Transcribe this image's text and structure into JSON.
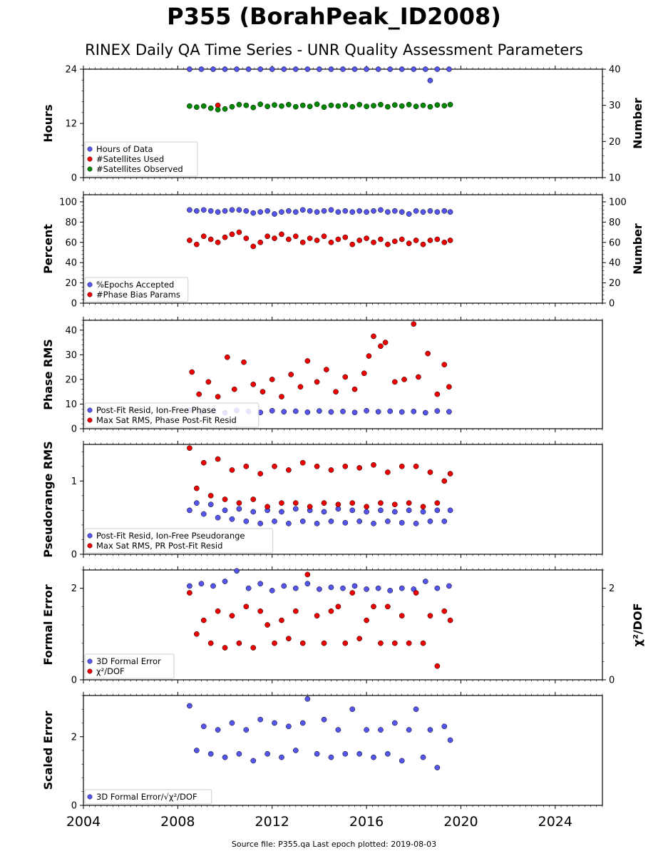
{
  "title": "P355 (BorahPeak_ID2008)",
  "subtitle": "RINEX Daily QA Time Series - UNR Quality Assessment Parameters",
  "source_note": "Source file: P355.qa Last epoch plotted: 2019-08-03",
  "colors": {
    "blue": "#5555ee",
    "red": "#ee0000",
    "green": "#008800",
    "edge": "#000000"
  },
  "chart_data": [
    {
      "type": "scatter",
      "ylabel": "Hours",
      "ylabel_right": "Number",
      "xlim": [
        2004,
        2026
      ],
      "xticks": [
        2004,
        2008,
        2012,
        2016,
        2020,
        2024
      ],
      "ylim": [
        0,
        24
      ],
      "yticks": [
        0,
        12,
        24
      ],
      "ylim_right": [
        10,
        40
      ],
      "yticks_right": [
        10,
        20,
        30,
        40
      ],
      "legend_position": "lower-left",
      "series": [
        {
          "name": "Hours of Data",
          "color": "blue",
          "axis": "left",
          "x": [
            2008.5,
            2009.0,
            2009.5,
            2010.0,
            2010.5,
            2011.0,
            2011.5,
            2012.0,
            2012.5,
            2013.0,
            2013.5,
            2014.0,
            2014.5,
            2015.0,
            2015.5,
            2016.0,
            2016.5,
            2017.0,
            2017.5,
            2018.0,
            2018.5,
            2018.7,
            2019.0,
            2019.5
          ],
          "y": [
            24,
            24,
            24,
            24,
            24,
            24,
            24,
            24,
            24,
            24,
            24,
            24,
            24,
            24,
            24,
            24,
            24,
            24,
            24,
            24,
            24,
            21.5,
            24,
            24
          ]
        },
        {
          "name": "#Satellites Used",
          "color": "red",
          "axis": "right",
          "x": [
            2009.7
          ],
          "y": [
            30
          ]
        },
        {
          "name": "#Satellites Observed",
          "color": "green",
          "axis": "right",
          "x": [
            2008.5,
            2008.8,
            2009.1,
            2009.4,
            2009.7,
            2010.0,
            2010.3,
            2010.6,
            2010.9,
            2011.2,
            2011.5,
            2011.8,
            2012.1,
            2012.4,
            2012.7,
            2013.0,
            2013.3,
            2013.6,
            2013.9,
            2014.2,
            2014.5,
            2014.8,
            2015.1,
            2015.4,
            2015.7,
            2016.0,
            2016.3,
            2016.6,
            2016.9,
            2017.2,
            2017.5,
            2017.8,
            2018.1,
            2018.4,
            2018.7,
            2019.0,
            2019.3,
            2019.55
          ],
          "y": [
            29.8,
            29.5,
            29.8,
            29.2,
            28.8,
            29.0,
            29.6,
            30.2,
            30.0,
            29.4,
            30.3,
            29.7,
            30.1,
            29.8,
            30.2,
            29.6,
            30.0,
            29.7,
            30.3,
            29.5,
            30.0,
            29.8,
            30.1,
            29.6,
            30.2,
            29.7,
            29.9,
            30.2,
            29.6,
            30.1,
            29.8,
            30.2,
            29.7,
            30.0,
            29.6,
            30.1,
            29.9,
            30.2
          ]
        }
      ]
    },
    {
      "type": "scatter",
      "ylabel": "Percent",
      "ylabel_right": "Number",
      "xlim": [
        2004,
        2026
      ],
      "xticks": [
        2004,
        2008,
        2012,
        2016,
        2020,
        2024
      ],
      "ylim": [
        0,
        107
      ],
      "yticks": [
        0,
        20,
        40,
        60,
        80,
        100
      ],
      "ylim_right": [
        0,
        107
      ],
      "yticks_right": [
        0,
        20,
        40,
        60,
        80,
        100
      ],
      "legend_position": "lower-left",
      "series": [
        {
          "name": "%Epochs Accepted",
          "color": "blue",
          "axis": "left",
          "x": [
            2008.5,
            2008.8,
            2009.1,
            2009.4,
            2009.7,
            2010.0,
            2010.3,
            2010.6,
            2010.9,
            2011.2,
            2011.5,
            2011.8,
            2012.1,
            2012.4,
            2012.7,
            2013.0,
            2013.3,
            2013.6,
            2013.9,
            2014.2,
            2014.5,
            2014.8,
            2015.1,
            2015.4,
            2015.7,
            2016.0,
            2016.3,
            2016.6,
            2016.9,
            2017.2,
            2017.5,
            2017.8,
            2018.1,
            2018.4,
            2018.7,
            2019.0,
            2019.3,
            2019.55
          ],
          "y": [
            92,
            91,
            92,
            91,
            90,
            91,
            92,
            92,
            91,
            89,
            90,
            91,
            88,
            90,
            91,
            90,
            92,
            91,
            90,
            91,
            92,
            90,
            91,
            90,
            91,
            90,
            91,
            92,
            90,
            91,
            90,
            88,
            91,
            90,
            91,
            90,
            91,
            90
          ]
        },
        {
          "name": "#Phase Bias Params",
          "color": "red",
          "axis": "right",
          "x": [
            2008.5,
            2008.8,
            2009.1,
            2009.4,
            2009.7,
            2010.0,
            2010.3,
            2010.6,
            2010.9,
            2011.2,
            2011.5,
            2011.8,
            2012.1,
            2012.4,
            2012.7,
            2013.0,
            2013.3,
            2013.6,
            2013.9,
            2014.2,
            2014.5,
            2014.8,
            2015.1,
            2015.4,
            2015.7,
            2016.0,
            2016.3,
            2016.6,
            2016.9,
            2017.2,
            2017.5,
            2017.8,
            2018.1,
            2018.4,
            2018.7,
            2019.0,
            2019.3,
            2019.55
          ],
          "y": [
            62,
            58,
            66,
            63,
            60,
            65,
            68,
            70,
            64,
            56,
            60,
            66,
            64,
            68,
            63,
            66,
            60,
            64,
            62,
            66,
            60,
            63,
            65,
            58,
            62,
            64,
            60,
            63,
            58,
            61,
            63,
            59,
            62,
            58,
            62,
            63,
            60,
            62
          ]
        }
      ]
    },
    {
      "type": "scatter",
      "ylabel": "Phase RMS",
      "xlim": [
        2004,
        2026
      ],
      "xticks": [
        2004,
        2008,
        2012,
        2016,
        2020,
        2024
      ],
      "ylim": [
        0,
        44
      ],
      "yticks": [
        0,
        10,
        20,
        30,
        40
      ],
      "legend_position": "lower-left",
      "series": [
        {
          "name": "Post-Fit Resid, Ion-Free Phase",
          "color": "blue",
          "axis": "left",
          "x": [
            2008.5,
            2009.0,
            2009.5,
            2010.0,
            2010.5,
            2011.0,
            2011.5,
            2012.0,
            2012.5,
            2013.0,
            2013.5,
            2014.0,
            2014.5,
            2015.0,
            2015.5,
            2016.0,
            2016.5,
            2017.0,
            2017.5,
            2018.0,
            2018.5,
            2019.0,
            2019.5
          ],
          "y": [
            7.5,
            6.8,
            7.2,
            6.5,
            7.4,
            7.0,
            6.6,
            7.3,
            6.9,
            7.1,
            6.7,
            7.2,
            6.8,
            7.0,
            6.6,
            7.3,
            6.9,
            7.1,
            6.8,
            7.0,
            6.5,
            7.2,
            6.9
          ]
        },
        {
          "name": "Max Sat RMS, Phase Post-Fit Resid",
          "color": "red",
          "axis": "left",
          "x": [
            2008.6,
            2008.9,
            2009.3,
            2009.7,
            2010.1,
            2010.4,
            2010.8,
            2011.2,
            2011.6,
            2012.0,
            2012.4,
            2012.8,
            2013.2,
            2013.5,
            2013.9,
            2014.3,
            2014.7,
            2015.1,
            2015.5,
            2015.9,
            2016.1,
            2016.3,
            2016.6,
            2016.8,
            2017.2,
            2017.6,
            2018.0,
            2018.2,
            2018.6,
            2019.0,
            2019.3,
            2019.5
          ],
          "y": [
            23,
            14,
            19,
            13,
            29,
            16,
            27,
            18,
            15,
            20,
            13,
            22,
            17,
            27.5,
            19,
            24,
            15,
            21,
            16,
            22.5,
            29.5,
            37.5,
            33.5,
            35,
            19,
            20,
            42.5,
            21,
            30.5,
            14,
            26,
            17
          ]
        }
      ]
    },
    {
      "type": "scatter",
      "ylabel": "Pseudorange RMS",
      "xlim": [
        2004,
        2026
      ],
      "xticks": [
        2004,
        2008,
        2012,
        2016,
        2020,
        2024
      ],
      "ylim": [
        0,
        1.5
      ],
      "yticks": [
        0,
        1
      ],
      "legend_position": "lower-left",
      "series": [
        {
          "name": "Post-Fit Resid, Ion-Free Pseudorange",
          "color": "blue",
          "axis": "left",
          "x": [
            2008.5,
            2008.8,
            2009.1,
            2009.4,
            2009.7,
            2010.0,
            2010.3,
            2010.6,
            2010.9,
            2011.2,
            2011.5,
            2011.8,
            2012.1,
            2012.4,
            2012.7,
            2013.0,
            2013.3,
            2013.6,
            2013.9,
            2014.2,
            2014.5,
            2014.8,
            2015.1,
            2015.4,
            2015.7,
            2016.0,
            2016.3,
            2016.6,
            2016.9,
            2017.2,
            2017.5,
            2017.8,
            2018.1,
            2018.4,
            2018.7,
            2019.0,
            2019.3,
            2019.55
          ],
          "y": [
            0.6,
            0.7,
            0.55,
            0.68,
            0.5,
            0.6,
            0.48,
            0.62,
            0.45,
            0.58,
            0.42,
            0.6,
            0.45,
            0.58,
            0.42,
            0.62,
            0.45,
            0.6,
            0.42,
            0.58,
            0.45,
            0.62,
            0.43,
            0.6,
            0.45,
            0.58,
            0.42,
            0.6,
            0.45,
            0.58,
            0.43,
            0.6,
            0.42,
            0.58,
            0.45,
            0.6,
            0.45,
            0.6
          ]
        },
        {
          "name": "Max Sat RMS, PR Post-Fit Resid",
          "color": "red",
          "axis": "left",
          "x": [
            2008.5,
            2008.8,
            2009.1,
            2009.4,
            2009.7,
            2010.0,
            2010.3,
            2010.6,
            2010.9,
            2011.2,
            2011.5,
            2011.8,
            2012.1,
            2012.4,
            2012.7,
            2013.0,
            2013.3,
            2013.6,
            2013.9,
            2014.2,
            2014.5,
            2014.8,
            2015.1,
            2015.4,
            2015.7,
            2016.0,
            2016.3,
            2016.6,
            2016.9,
            2017.2,
            2017.5,
            2017.8,
            2018.1,
            2018.4,
            2018.7,
            2019.0,
            2019.3,
            2019.55
          ],
          "y": [
            1.45,
            0.9,
            1.25,
            0.8,
            1.3,
            0.75,
            1.15,
            0.7,
            1.2,
            0.75,
            1.1,
            0.65,
            1.2,
            0.7,
            1.15,
            0.7,
            1.25,
            0.65,
            1.2,
            0.7,
            1.15,
            0.68,
            1.2,
            0.7,
            1.18,
            0.65,
            1.22,
            0.7,
            1.12,
            0.68,
            1.2,
            0.7,
            1.2,
            0.65,
            1.12,
            0.7,
            1.0,
            1.1
          ]
        }
      ]
    },
    {
      "type": "scatter",
      "ylabel": "Formal Error",
      "ylabel_right": "χ²/DOF",
      "xlim": [
        2004,
        2026
      ],
      "xticks": [
        2004,
        2008,
        2012,
        2016,
        2020,
        2024
      ],
      "ylim": [
        0,
        2.4
      ],
      "yticks": [
        0,
        2
      ],
      "ylim_right": [
        0,
        2.4
      ],
      "yticks_right": [
        0,
        2
      ],
      "legend_position": "lower-left",
      "series": [
        {
          "name": "3D Formal Error",
          "color": "blue",
          "axis": "left",
          "x": [
            2008.5,
            2009.0,
            2009.5,
            2010.0,
            2010.5,
            2011.0,
            2011.5,
            2012.0,
            2012.5,
            2013.0,
            2013.5,
            2014.0,
            2014.5,
            2015.0,
            2015.5,
            2016.0,
            2016.5,
            2017.0,
            2017.5,
            2018.0,
            2018.5,
            2019.0,
            2019.5
          ],
          "y": [
            2.05,
            2.1,
            2.05,
            2.15,
            2.38,
            2.0,
            2.1,
            1.95,
            2.05,
            2.0,
            2.1,
            1.98,
            2.02,
            2.0,
            2.05,
            1.98,
            2.0,
            1.95,
            2.0,
            1.98,
            2.15,
            2.0,
            2.05
          ]
        },
        {
          "name": "χ²/DOF",
          "color": "red",
          "axis": "right",
          "x": [
            2008.5,
            2008.8,
            2009.1,
            2009.4,
            2009.7,
            2010.0,
            2010.3,
            2010.6,
            2010.9,
            2011.2,
            2011.5,
            2011.8,
            2012.1,
            2012.4,
            2012.7,
            2013.0,
            2013.3,
            2013.5,
            2013.9,
            2014.2,
            2014.5,
            2014.8,
            2015.1,
            2015.4,
            2015.7,
            2016.0,
            2016.3,
            2016.6,
            2016.9,
            2017.2,
            2017.5,
            2017.8,
            2018.1,
            2018.4,
            2018.7,
            2019.0,
            2019.3,
            2019.55
          ],
          "y": [
            1.9,
            1.0,
            1.3,
            0.8,
            1.5,
            0.7,
            1.4,
            0.8,
            1.6,
            0.7,
            1.5,
            1.2,
            0.8,
            1.3,
            0.9,
            1.5,
            0.8,
            2.3,
            1.4,
            0.8,
            1.5,
            1.6,
            0.8,
            1.9,
            0.9,
            1.3,
            1.6,
            0.8,
            1.6,
            0.8,
            1.4,
            0.8,
            1.9,
            0.8,
            1.4,
            0.3,
            1.5,
            1.3
          ]
        }
      ]
    },
    {
      "type": "scatter",
      "ylabel": "Scaled Error",
      "xlim": [
        2004,
        2026
      ],
      "xticks": [
        2004,
        2008,
        2012,
        2016,
        2020,
        2024
      ],
      "ylim": [
        0,
        3.2
      ],
      "yticks": [
        0,
        2
      ],
      "legend_position": "lower-left",
      "series": [
        {
          "name": "3D Formal Error/√χ²/DOF",
          "color": "blue",
          "axis": "left",
          "x": [
            2008.5,
            2008.8,
            2009.1,
            2009.4,
            2009.7,
            2010.0,
            2010.3,
            2010.6,
            2010.9,
            2011.2,
            2011.5,
            2011.8,
            2012.1,
            2012.4,
            2012.7,
            2013.0,
            2013.3,
            2013.5,
            2013.9,
            2014.2,
            2014.5,
            2014.8,
            2015.1,
            2015.4,
            2015.7,
            2016.0,
            2016.3,
            2016.6,
            2016.9,
            2017.2,
            2017.5,
            2017.8,
            2018.1,
            2018.4,
            2018.7,
            2019.0,
            2019.3,
            2019.55
          ],
          "y": [
            2.9,
            1.6,
            2.3,
            1.5,
            2.2,
            1.4,
            2.4,
            1.5,
            2.2,
            1.3,
            2.5,
            1.5,
            2.4,
            1.4,
            2.3,
            1.6,
            2.4,
            3.1,
            1.5,
            2.5,
            1.4,
            2.2,
            1.5,
            2.8,
            1.5,
            2.2,
            1.4,
            2.2,
            1.5,
            2.4,
            1.3,
            2.2,
            2.8,
            1.4,
            2.2,
            1.1,
            2.3,
            1.9
          ]
        }
      ]
    }
  ]
}
